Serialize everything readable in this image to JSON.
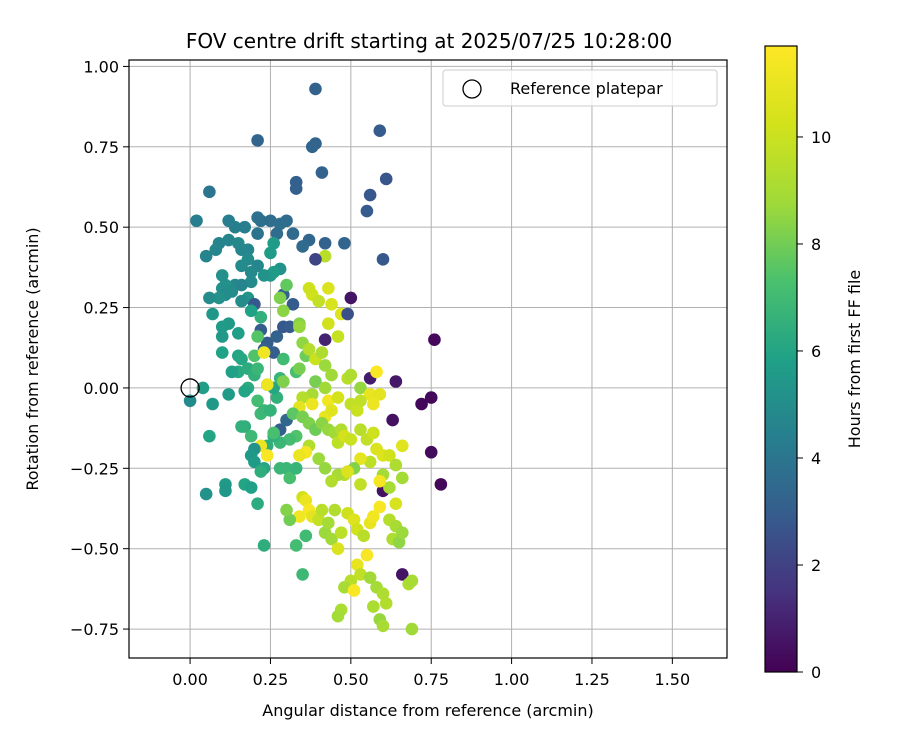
{
  "chart_data": {
    "type": "scatter",
    "title": "FOV centre drift starting at 2025/07/25 10:28:00",
    "xlabel": "Angular distance from reference (arcmin)",
    "ylabel": "Rotation from reference (arcmin)",
    "xlim": [
      -0.19,
      1.67
    ],
    "ylim": [
      -0.84,
      1.02
    ],
    "xticks": [
      "0.00",
      "0.25",
      "0.50",
      "0.75",
      "1.00",
      "1.25",
      "1.50"
    ],
    "yticks": [
      "−0.75",
      "−0.50",
      "−0.25",
      "0.00",
      "0.25",
      "0.50",
      "0.75",
      "1.00"
    ],
    "grid": true,
    "legend": {
      "position": "top-right",
      "entries": [
        "Reference platepar"
      ]
    },
    "reference_point": {
      "x": 0,
      "y": 0
    },
    "colorbar": {
      "label": "Hours from first FF file",
      "colormap": "viridis",
      "range": [
        0,
        11.7
      ],
      "ticks": [
        "0",
        "2",
        "4",
        "6",
        "8",
        "10"
      ]
    },
    "point_columns": [
      "x",
      "y",
      "hours"
    ],
    "points": [
      [
        0.39,
        0.93,
        3.2
      ],
      [
        0.21,
        0.77,
        3.3
      ],
      [
        0.39,
        0.76,
        3.2
      ],
      [
        0.38,
        0.75,
        3.3
      ],
      [
        0.59,
        0.8,
        2.9
      ],
      [
        0.33,
        0.64,
        3.1
      ],
      [
        0.33,
        0.62,
        3.1
      ],
      [
        0.41,
        0.67,
        3.2
      ],
      [
        0.61,
        0.65,
        2.7
      ],
      [
        0.56,
        0.6,
        2.8
      ],
      [
        0.55,
        0.55,
        2.9
      ],
      [
        0.06,
        0.61,
        4.0
      ],
      [
        0.02,
        0.52,
        4.3
      ],
      [
        0.12,
        0.52,
        4.3
      ],
      [
        0.14,
        0.5,
        4.4
      ],
      [
        0.17,
        0.5,
        4.3
      ],
      [
        0.21,
        0.53,
        3.8
      ],
      [
        0.22,
        0.52,
        3.7
      ],
      [
        0.25,
        0.52,
        3.6
      ],
      [
        0.28,
        0.51,
        3.7
      ],
      [
        0.3,
        0.52,
        3.6
      ],
      [
        0.27,
        0.48,
        3.6
      ],
      [
        0.21,
        0.48,
        3.9
      ],
      [
        0.32,
        0.48,
        3.5
      ],
      [
        0.37,
        0.46,
        3.4
      ],
      [
        0.35,
        0.44,
        3.5
      ],
      [
        0.42,
        0.45,
        3.2
      ],
      [
        0.48,
        0.45,
        3.3
      ],
      [
        0.6,
        0.4,
        2.8
      ],
      [
        0.08,
        0.43,
        4.7
      ],
      [
        0.09,
        0.45,
        4.6
      ],
      [
        0.12,
        0.46,
        4.6
      ],
      [
        0.15,
        0.45,
        4.8
      ],
      [
        0.16,
        0.43,
        4.7
      ],
      [
        0.18,
        0.43,
        4.7
      ],
      [
        0.05,
        0.41,
        4.6
      ],
      [
        0.25,
        0.42,
        5.6
      ],
      [
        0.26,
        0.45,
        5.6
      ],
      [
        0.18,
        0.4,
        4.9
      ],
      [
        0.21,
        0.38,
        4.7
      ],
      [
        0.16,
        0.38,
        4.9
      ],
      [
        0.19,
        0.36,
        4.8
      ],
      [
        0.28,
        0.37,
        5.2
      ],
      [
        0.25,
        0.35,
        5.4
      ],
      [
        0.26,
        0.36,
        5.6
      ],
      [
        0.23,
        0.35,
        5.2
      ],
      [
        0.19,
        0.33,
        4.9
      ],
      [
        0.14,
        0.32,
        4.8
      ],
      [
        0.11,
        0.32,
        5.2
      ],
      [
        0.1,
        0.31,
        5.1
      ],
      [
        0.11,
        0.29,
        4.9
      ],
      [
        0.13,
        0.3,
        5.0
      ],
      [
        0.1,
        0.35,
        5.1
      ],
      [
        0.09,
        0.28,
        5.2
      ],
      [
        0.06,
        0.28,
        5.0
      ],
      [
        0.07,
        0.23,
        5.4
      ],
      [
        0.16,
        0.32,
        4.6
      ],
      [
        0.18,
        0.28,
        5.3
      ],
      [
        0.16,
        0.27,
        5.0
      ],
      [
        0.12,
        0.2,
        5.5
      ],
      [
        0.1,
        0.19,
        5.6
      ],
      [
        0.1,
        0.16,
        5.5
      ],
      [
        0.15,
        0.17,
        5.7
      ],
      [
        0.1,
        0.11,
        5.9
      ],
      [
        0.15,
        0.1,
        6.0
      ],
      [
        0.16,
        0.09,
        6.1
      ],
      [
        0.2,
        0.26,
        2.8
      ],
      [
        0.29,
        0.29,
        3.1
      ],
      [
        0.3,
        0.32,
        7.7
      ],
      [
        0.22,
        0.22,
        6.5
      ],
      [
        0.19,
        0.24,
        5.9
      ],
      [
        0.22,
        0.18,
        3.0
      ],
      [
        0.24,
        0.14,
        2.9
      ],
      [
        0.23,
        0.12,
        3.2
      ],
      [
        0.26,
        0.11,
        3.0
      ],
      [
        0.27,
        0.16,
        3.2
      ],
      [
        0.29,
        0.19,
        2.8
      ],
      [
        0.31,
        0.19,
        2.9
      ],
      [
        0.32,
        0.26,
        2.9
      ],
      [
        0.21,
        0.16,
        7.5
      ],
      [
        0.2,
        0.1,
        7.4
      ],
      [
        0.15,
        0.05,
        6.2
      ],
      [
        0.18,
        0.06,
        6.3
      ],
      [
        0.2,
        0.04,
        6.5
      ],
      [
        0.21,
        0.06,
        6.8
      ],
      [
        0.18,
        0.0,
        6.3
      ],
      [
        0.12,
        -0.02,
        5.6
      ],
      [
        0.17,
        -0.01,
        6.0
      ],
      [
        0.13,
        0.05,
        5.8
      ],
      [
        0.04,
        0.0,
        5.7
      ],
      [
        0.0,
        -0.04,
        4.9
      ],
      [
        0.07,
        -0.05,
        5.5
      ],
      [
        0.21,
        -0.04,
        7.1
      ],
      [
        0.22,
        -0.08,
        6.9
      ],
      [
        0.23,
        -0.07,
        6.8
      ],
      [
        0.25,
        -0.07,
        6.6
      ],
      [
        0.27,
        -0.03,
        6.5
      ],
      [
        0.26,
        0.0,
        6.1
      ],
      [
        0.24,
        0.01,
        7.1
      ],
      [
        0.28,
        0.03,
        6.7
      ],
      [
        0.33,
        0.05,
        7.2
      ],
      [
        0.29,
        0.09,
        7.0
      ],
      [
        0.23,
        0.11,
        11.3
      ],
      [
        0.24,
        0.01,
        11.2
      ],
      [
        0.29,
        0.02,
        8.2
      ],
      [
        0.34,
        0.06,
        8.1
      ],
      [
        0.36,
        0.1,
        7.9
      ],
      [
        0.35,
        0.14,
        8.5
      ],
      [
        0.34,
        0.2,
        8.3
      ],
      [
        0.37,
        0.12,
        9.4
      ],
      [
        0.39,
        0.09,
        10.0
      ],
      [
        0.38,
        0.29,
        10.2
      ],
      [
        0.37,
        0.31,
        10.1
      ],
      [
        0.4,
        0.27,
        9.8
      ],
      [
        0.42,
        0.41,
        9.5
      ],
      [
        0.39,
        0.4,
        2.1
      ],
      [
        0.43,
        0.31,
        10.5
      ],
      [
        0.44,
        0.26,
        10.4
      ],
      [
        0.43,
        0.2,
        10.2
      ],
      [
        0.47,
        0.23,
        10.6
      ],
      [
        0.49,
        0.23,
        2.5
      ],
      [
        0.5,
        0.28,
        0.6
      ],
      [
        0.46,
        0.16,
        9.9
      ],
      [
        0.42,
        0.15,
        1.0
      ],
      [
        0.41,
        0.11,
        9.2
      ],
      [
        0.42,
        0.07,
        8.7
      ],
      [
        0.44,
        0.04,
        8.8
      ],
      [
        0.39,
        0.02,
        8.1
      ],
      [
        0.42,
        0.0,
        8.8
      ],
      [
        0.38,
        -0.02,
        9.0
      ],
      [
        0.35,
        -0.03,
        9.4
      ],
      [
        0.34,
        -0.06,
        10.9
      ],
      [
        0.38,
        -0.05,
        11.2
      ],
      [
        0.43,
        -0.04,
        11.3
      ],
      [
        0.42,
        -0.09,
        11.0
      ],
      [
        0.44,
        -0.07,
        10.7
      ],
      [
        0.46,
        -0.03,
        10.3
      ],
      [
        0.49,
        0.03,
        9.5
      ],
      [
        0.5,
        0.04,
        9.2
      ],
      [
        0.53,
        0.0,
        8.6
      ],
      [
        0.56,
        0.03,
        0.8
      ],
      [
        0.58,
        0.05,
        11.6
      ],
      [
        0.56,
        -0.02,
        11.0
      ],
      [
        0.59,
        -0.02,
        10.8
      ],
      [
        0.57,
        -0.05,
        11.2
      ],
      [
        0.5,
        -0.05,
        9.7
      ],
      [
        0.52,
        -0.07,
        10.0
      ],
      [
        0.53,
        -0.04,
        9.7
      ],
      [
        0.64,
        0.02,
        0.7
      ],
      [
        0.63,
        -0.1,
        0.5
      ],
      [
        0.72,
        -0.05,
        0.2
      ],
      [
        0.75,
        -0.03,
        0.2
      ],
      [
        0.75,
        -0.2,
        0.3
      ],
      [
        0.78,
        -0.3,
        0.2
      ],
      [
        0.76,
        0.15,
        0.2
      ],
      [
        0.66,
        -0.58,
        0.6
      ],
      [
        0.6,
        -0.32,
        0.5
      ],
      [
        0.28,
        -0.13,
        3.0
      ],
      [
        0.3,
        -0.1,
        3.4
      ],
      [
        0.32,
        -0.08,
        7.6
      ],
      [
        0.35,
        -0.09,
        8.1
      ],
      [
        0.37,
        -0.11,
        8.2
      ],
      [
        0.39,
        -0.13,
        7.9
      ],
      [
        0.41,
        -0.11,
        8.4
      ],
      [
        0.43,
        -0.13,
        8.6
      ],
      [
        0.45,
        -0.14,
        8.8
      ],
      [
        0.47,
        -0.13,
        9.3
      ],
      [
        0.46,
        -0.17,
        9.6
      ],
      [
        0.48,
        -0.15,
        10.3
      ],
      [
        0.5,
        -0.16,
        10.0
      ],
      [
        0.53,
        -0.13,
        9.5
      ],
      [
        0.55,
        -0.16,
        9.7
      ],
      [
        0.57,
        -0.14,
        10.1
      ],
      [
        0.58,
        -0.19,
        10.5
      ],
      [
        0.6,
        -0.21,
        10.6
      ],
      [
        0.62,
        -0.21,
        10.2
      ],
      [
        0.66,
        -0.18,
        10.7
      ],
      [
        0.64,
        -0.24,
        9.2
      ],
      [
        0.6,
        -0.27,
        8.9
      ],
      [
        0.56,
        -0.23,
        9.6
      ],
      [
        0.53,
        -0.22,
        10.9
      ],
      [
        0.51,
        -0.25,
        8.3
      ],
      [
        0.48,
        -0.27,
        9.5
      ],
      [
        0.46,
        -0.27,
        9.0
      ],
      [
        0.44,
        -0.29,
        9.3
      ],
      [
        0.42,
        -0.25,
        8.6
      ],
      [
        0.4,
        -0.22,
        8.7
      ],
      [
        0.37,
        -0.18,
        9.3
      ],
      [
        0.36,
        -0.2,
        11.4
      ],
      [
        0.34,
        -0.21,
        11.1
      ],
      [
        0.33,
        -0.15,
        7.4
      ],
      [
        0.31,
        -0.16,
        7.1
      ],
      [
        0.28,
        -0.17,
        6.8
      ],
      [
        0.26,
        -0.15,
        6.5
      ],
      [
        0.24,
        -0.18,
        6.4
      ],
      [
        0.22,
        -0.18,
        11.2
      ],
      [
        0.2,
        -0.19,
        5.2
      ],
      [
        0.19,
        -0.21,
        5.5
      ],
      [
        0.2,
        -0.23,
        5.6
      ],
      [
        0.23,
        -0.25,
        6.1
      ],
      [
        0.22,
        -0.26,
        6.4
      ],
      [
        0.24,
        -0.21,
        11.6
      ],
      [
        0.28,
        -0.25,
        6.8
      ],
      [
        0.3,
        -0.25,
        6.8
      ],
      [
        0.31,
        -0.28,
        7.2
      ],
      [
        0.33,
        -0.25,
        6.7
      ],
      [
        0.35,
        -0.34,
        10.2
      ],
      [
        0.36,
        -0.35,
        11.1
      ],
      [
        0.37,
        -0.38,
        11.5
      ],
      [
        0.34,
        -0.4,
        11.3
      ],
      [
        0.38,
        -0.4,
        10.8
      ],
      [
        0.4,
        -0.41,
        9.8
      ],
      [
        0.41,
        -0.38,
        9.5
      ],
      [
        0.42,
        -0.45,
        8.7
      ],
      [
        0.43,
        -0.42,
        8.9
      ],
      [
        0.44,
        -0.47,
        8.8
      ],
      [
        0.46,
        -0.5,
        10.5
      ],
      [
        0.47,
        -0.45,
        9.6
      ],
      [
        0.49,
        -0.39,
        10.1
      ],
      [
        0.51,
        -0.41,
        10.6
      ],
      [
        0.52,
        -0.44,
        10.2
      ],
      [
        0.54,
        -0.46,
        9.5
      ],
      [
        0.56,
        -0.42,
        11.0
      ],
      [
        0.57,
        -0.4,
        11.3
      ],
      [
        0.59,
        -0.37,
        11.5
      ],
      [
        0.62,
        -0.41,
        9.4
      ],
      [
        0.64,
        -0.43,
        9.0
      ],
      [
        0.63,
        -0.47,
        9.2
      ],
      [
        0.65,
        -0.48,
        8.5
      ],
      [
        0.66,
        -0.45,
        8.7
      ],
      [
        0.64,
        -0.36,
        10.4
      ],
      [
        0.66,
        -0.28,
        8.9
      ],
      [
        0.62,
        -0.31,
        9.0
      ],
      [
        0.59,
        -0.29,
        11.4
      ],
      [
        0.55,
        -0.52,
        11.5
      ],
      [
        0.52,
        -0.55,
        11.0
      ],
      [
        0.53,
        -0.58,
        9.7
      ],
      [
        0.5,
        -0.6,
        9.5
      ],
      [
        0.48,
        -0.62,
        9.0
      ],
      [
        0.51,
        -0.63,
        11.6
      ],
      [
        0.56,
        -0.59,
        8.8
      ],
      [
        0.58,
        -0.62,
        8.9
      ],
      [
        0.6,
        -0.64,
        9.2
      ],
      [
        0.57,
        -0.68,
        9.1
      ],
      [
        0.59,
        -0.72,
        8.6
      ],
      [
        0.61,
        -0.67,
        9.3
      ],
      [
        0.68,
        -0.61,
        9.2
      ],
      [
        0.69,
        -0.6,
        9.0
      ],
      [
        0.69,
        -0.75,
        8.8
      ],
      [
        0.6,
        -0.74,
        9.0
      ],
      [
        0.47,
        -0.69,
        9.1
      ],
      [
        0.46,
        -0.71,
        8.9
      ],
      [
        0.36,
        -0.46,
        7.0
      ],
      [
        0.31,
        -0.41,
        8.0
      ],
      [
        0.3,
        -0.38,
        8.3
      ],
      [
        0.33,
        -0.49,
        7.1
      ],
      [
        0.35,
        -0.58,
        6.9
      ],
      [
        0.23,
        -0.49,
        6.4
      ],
      [
        0.21,
        -0.36,
        6.3
      ],
      [
        0.17,
        -0.3,
        6.0
      ],
      [
        0.19,
        -0.31,
        5.8
      ],
      [
        0.11,
        -0.3,
        5.6
      ],
      [
        0.11,
        -0.32,
        5.4
      ],
      [
        0.05,
        -0.33,
        5.2
      ],
      [
        0.06,
        -0.15,
        6.0
      ],
      [
        0.17,
        -0.12,
        6.4
      ],
      [
        0.19,
        -0.15,
        6.9
      ],
      [
        0.16,
        -0.12,
        6.5
      ],
      [
        0.29,
        0.24,
        8.4
      ],
      [
        0.34,
        0.19,
        8.6
      ],
      [
        0.28,
        0.28,
        8.2
      ],
      [
        0.45,
        -0.38,
        9.3
      ],
      [
        0.49,
        -0.26,
        10.5
      ],
      [
        0.53,
        -0.3,
        9.7
      ],
      [
        0.26,
        -0.14,
        7.2
      ]
    ]
  }
}
